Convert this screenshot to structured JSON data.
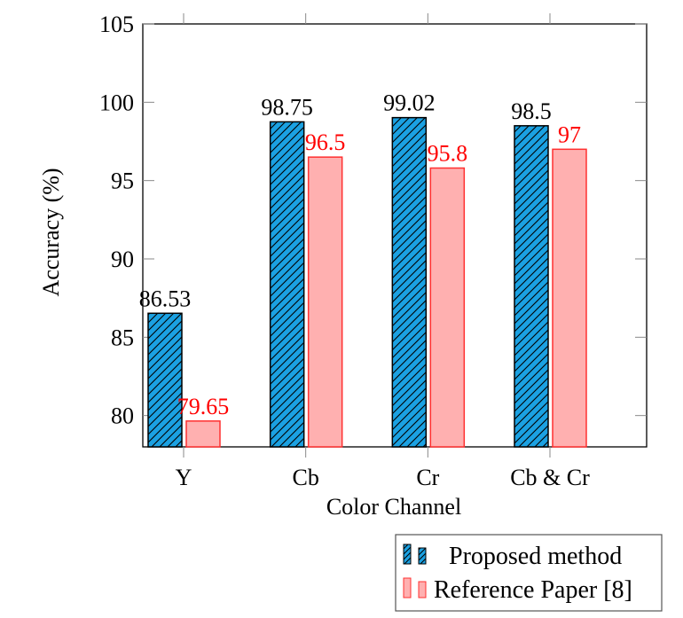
{
  "chart_data": {
    "type": "bar",
    "title": "",
    "xlabel": "Color Channel",
    "ylabel": "Accuracy (%)",
    "categories": [
      "Y",
      "Cb",
      "Cr",
      "Cb & Cr"
    ],
    "ylim": [
      78,
      105
    ],
    "yticks": [
      80,
      85,
      90,
      95,
      100,
      105
    ],
    "ytick_labels": [
      "80",
      "85",
      "90",
      "95",
      "100",
      "105"
    ],
    "grid": false,
    "legend_position": "below-right",
    "series": [
      {
        "name": "Proposed method",
        "values": [
          86.53,
          98.75,
          99.02,
          98.5
        ],
        "labels": [
          "86.53",
          "98.75",
          "99.02",
          "98.5"
        ],
        "fill": "#1ba1e2",
        "stroke": "#000000",
        "pattern": "north-east-lines",
        "label_color": "#000000"
      },
      {
        "name": "Reference Paper [8]",
        "values": [
          79.65,
          96.5,
          95.8,
          97
        ],
        "labels": [
          "79.65",
          "96.5",
          "95.8",
          "97"
        ],
        "fill": "#ffb0b0",
        "stroke": "#ff3030",
        "pattern": "none",
        "label_color": "#ff0000"
      }
    ]
  }
}
